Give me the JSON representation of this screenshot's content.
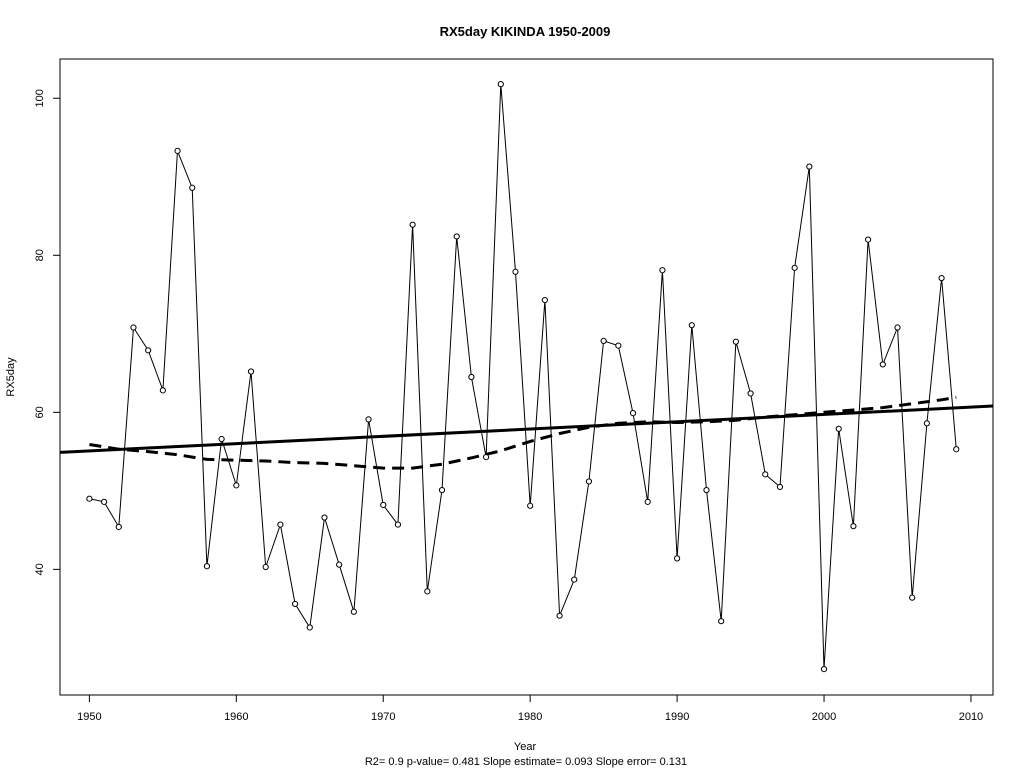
{
  "chart_data": {
    "type": "line",
    "title": "RX5day   KIKINDA 1950-2009",
    "xlabel": "Year",
    "ylabel": "RX5day",
    "footer": "R2= 0.9  p-value= 0.481  Slope estimate= 0.093  Slope error= 0.131",
    "xlim": [
      1948,
      2011.5
    ],
    "ylim": [
      24,
      105
    ],
    "x_ticks": [
      1950,
      1960,
      1970,
      1980,
      1990,
      2000,
      2010
    ],
    "y_ticks": [
      40,
      60,
      80,
      100
    ],
    "grid": false,
    "x": [
      1950,
      1951,
      1952,
      1953,
      1954,
      1955,
      1956,
      1957,
      1958,
      1959,
      1960,
      1961,
      1962,
      1963,
      1964,
      1965,
      1966,
      1967,
      1968,
      1969,
      1970,
      1971,
      1972,
      1973,
      1974,
      1975,
      1976,
      1977,
      1978,
      1979,
      1980,
      1981,
      1982,
      1983,
      1984,
      1985,
      1986,
      1987,
      1988,
      1989,
      1990,
      1991,
      1992,
      1993,
      1994,
      1995,
      1996,
      1997,
      1998,
      1999,
      2000,
      2001,
      2002,
      2003,
      2004,
      2005,
      2006,
      2007,
      2008,
      2009
    ],
    "series": [
      {
        "style": "solid-thin-points",
        "values": [
          49.0,
          48.6,
          45.4,
          70.8,
          67.9,
          62.8,
          93.3,
          88.6,
          40.4,
          56.6,
          50.7,
          65.2,
          40.3,
          45.7,
          35.6,
          32.6,
          46.6,
          40.6,
          34.6,
          59.1,
          48.2,
          45.7,
          83.9,
          37.2,
          50.1,
          82.4,
          64.5,
          54.3,
          101.8,
          77.9,
          48.1,
          74.3,
          34.1,
          38.7,
          51.2,
          69.1,
          68.5,
          59.9,
          48.6,
          78.1,
          41.4,
          71.1,
          50.1,
          33.4,
          69.0,
          62.4,
          52.1,
          50.5,
          78.4,
          91.3,
          27.3,
          57.9,
          45.5,
          82.0,
          66.1,
          70.8,
          36.4,
          58.6,
          77.1,
          55.3
        ]
      },
      {
        "style": "linear-trend",
        "x": [
          1948,
          2011.5
        ],
        "values": [
          54.9,
          60.8
        ]
      },
      {
        "style": "dashed-smooth",
        "x": [
          1950,
          1952,
          1954,
          1956,
          1958,
          1960,
          1962,
          1964,
          1966,
          1968,
          1970,
          1972,
          1974,
          1976,
          1978,
          1980,
          1982,
          1984,
          1986,
          1988,
          1990,
          1992,
          1994,
          1996,
          1998,
          2000,
          2002,
          2004,
          2006,
          2008,
          2009
        ],
        "values": [
          55.9,
          55.3,
          55.0,
          54.6,
          54.0,
          53.9,
          53.8,
          53.6,
          53.5,
          53.2,
          52.9,
          52.9,
          53.4,
          54.2,
          55.1,
          56.3,
          57.3,
          58.1,
          58.6,
          58.8,
          58.7,
          58.8,
          59.0,
          59.4,
          59.7,
          60.0,
          60.3,
          60.6,
          61.1,
          61.6,
          61.9
        ]
      }
    ]
  }
}
